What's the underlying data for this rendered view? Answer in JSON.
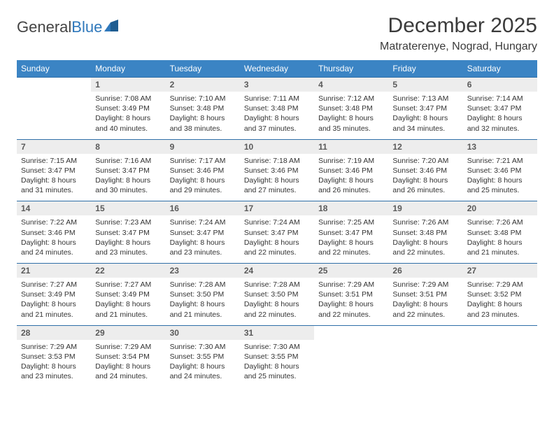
{
  "logo": {
    "part1": "General",
    "part2": "Blue"
  },
  "title": "December 2025",
  "location": "Matraterenye, Nograd, Hungary",
  "colors": {
    "header_bg": "#3b84c4",
    "header_text": "#ffffff",
    "daynum_bg": "#ededed",
    "row_border": "#2f6fa8",
    "logo_blue": "#2f78bb",
    "text": "#333333"
  },
  "weekdays": [
    "Sunday",
    "Monday",
    "Tuesday",
    "Wednesday",
    "Thursday",
    "Friday",
    "Saturday"
  ],
  "weeks": [
    [
      {
        "n": "",
        "sr": "",
        "ss": "",
        "dl": ""
      },
      {
        "n": "1",
        "sr": "Sunrise: 7:08 AM",
        "ss": "Sunset: 3:49 PM",
        "dl": "Daylight: 8 hours and 40 minutes."
      },
      {
        "n": "2",
        "sr": "Sunrise: 7:10 AM",
        "ss": "Sunset: 3:48 PM",
        "dl": "Daylight: 8 hours and 38 minutes."
      },
      {
        "n": "3",
        "sr": "Sunrise: 7:11 AM",
        "ss": "Sunset: 3:48 PM",
        "dl": "Daylight: 8 hours and 37 minutes."
      },
      {
        "n": "4",
        "sr": "Sunrise: 7:12 AM",
        "ss": "Sunset: 3:48 PM",
        "dl": "Daylight: 8 hours and 35 minutes."
      },
      {
        "n": "5",
        "sr": "Sunrise: 7:13 AM",
        "ss": "Sunset: 3:47 PM",
        "dl": "Daylight: 8 hours and 34 minutes."
      },
      {
        "n": "6",
        "sr": "Sunrise: 7:14 AM",
        "ss": "Sunset: 3:47 PM",
        "dl": "Daylight: 8 hours and 32 minutes."
      }
    ],
    [
      {
        "n": "7",
        "sr": "Sunrise: 7:15 AM",
        "ss": "Sunset: 3:47 PM",
        "dl": "Daylight: 8 hours and 31 minutes."
      },
      {
        "n": "8",
        "sr": "Sunrise: 7:16 AM",
        "ss": "Sunset: 3:47 PM",
        "dl": "Daylight: 8 hours and 30 minutes."
      },
      {
        "n": "9",
        "sr": "Sunrise: 7:17 AM",
        "ss": "Sunset: 3:46 PM",
        "dl": "Daylight: 8 hours and 29 minutes."
      },
      {
        "n": "10",
        "sr": "Sunrise: 7:18 AM",
        "ss": "Sunset: 3:46 PM",
        "dl": "Daylight: 8 hours and 27 minutes."
      },
      {
        "n": "11",
        "sr": "Sunrise: 7:19 AM",
        "ss": "Sunset: 3:46 PM",
        "dl": "Daylight: 8 hours and 26 minutes."
      },
      {
        "n": "12",
        "sr": "Sunrise: 7:20 AM",
        "ss": "Sunset: 3:46 PM",
        "dl": "Daylight: 8 hours and 26 minutes."
      },
      {
        "n": "13",
        "sr": "Sunrise: 7:21 AM",
        "ss": "Sunset: 3:46 PM",
        "dl": "Daylight: 8 hours and 25 minutes."
      }
    ],
    [
      {
        "n": "14",
        "sr": "Sunrise: 7:22 AM",
        "ss": "Sunset: 3:46 PM",
        "dl": "Daylight: 8 hours and 24 minutes."
      },
      {
        "n": "15",
        "sr": "Sunrise: 7:23 AM",
        "ss": "Sunset: 3:47 PM",
        "dl": "Daylight: 8 hours and 23 minutes."
      },
      {
        "n": "16",
        "sr": "Sunrise: 7:24 AM",
        "ss": "Sunset: 3:47 PM",
        "dl": "Daylight: 8 hours and 23 minutes."
      },
      {
        "n": "17",
        "sr": "Sunrise: 7:24 AM",
        "ss": "Sunset: 3:47 PM",
        "dl": "Daylight: 8 hours and 22 minutes."
      },
      {
        "n": "18",
        "sr": "Sunrise: 7:25 AM",
        "ss": "Sunset: 3:47 PM",
        "dl": "Daylight: 8 hours and 22 minutes."
      },
      {
        "n": "19",
        "sr": "Sunrise: 7:26 AM",
        "ss": "Sunset: 3:48 PM",
        "dl": "Daylight: 8 hours and 22 minutes."
      },
      {
        "n": "20",
        "sr": "Sunrise: 7:26 AM",
        "ss": "Sunset: 3:48 PM",
        "dl": "Daylight: 8 hours and 21 minutes."
      }
    ],
    [
      {
        "n": "21",
        "sr": "Sunrise: 7:27 AM",
        "ss": "Sunset: 3:49 PM",
        "dl": "Daylight: 8 hours and 21 minutes."
      },
      {
        "n": "22",
        "sr": "Sunrise: 7:27 AM",
        "ss": "Sunset: 3:49 PM",
        "dl": "Daylight: 8 hours and 21 minutes."
      },
      {
        "n": "23",
        "sr": "Sunrise: 7:28 AM",
        "ss": "Sunset: 3:50 PM",
        "dl": "Daylight: 8 hours and 21 minutes."
      },
      {
        "n": "24",
        "sr": "Sunrise: 7:28 AM",
        "ss": "Sunset: 3:50 PM",
        "dl": "Daylight: 8 hours and 22 minutes."
      },
      {
        "n": "25",
        "sr": "Sunrise: 7:29 AM",
        "ss": "Sunset: 3:51 PM",
        "dl": "Daylight: 8 hours and 22 minutes."
      },
      {
        "n": "26",
        "sr": "Sunrise: 7:29 AM",
        "ss": "Sunset: 3:51 PM",
        "dl": "Daylight: 8 hours and 22 minutes."
      },
      {
        "n": "27",
        "sr": "Sunrise: 7:29 AM",
        "ss": "Sunset: 3:52 PM",
        "dl": "Daylight: 8 hours and 23 minutes."
      }
    ],
    [
      {
        "n": "28",
        "sr": "Sunrise: 7:29 AM",
        "ss": "Sunset: 3:53 PM",
        "dl": "Daylight: 8 hours and 23 minutes."
      },
      {
        "n": "29",
        "sr": "Sunrise: 7:29 AM",
        "ss": "Sunset: 3:54 PM",
        "dl": "Daylight: 8 hours and 24 minutes."
      },
      {
        "n": "30",
        "sr": "Sunrise: 7:30 AM",
        "ss": "Sunset: 3:55 PM",
        "dl": "Daylight: 8 hours and 24 minutes."
      },
      {
        "n": "31",
        "sr": "Sunrise: 7:30 AM",
        "ss": "Sunset: 3:55 PM",
        "dl": "Daylight: 8 hours and 25 minutes."
      },
      {
        "n": "",
        "sr": "",
        "ss": "",
        "dl": ""
      },
      {
        "n": "",
        "sr": "",
        "ss": "",
        "dl": ""
      },
      {
        "n": "",
        "sr": "",
        "ss": "",
        "dl": ""
      }
    ]
  ]
}
